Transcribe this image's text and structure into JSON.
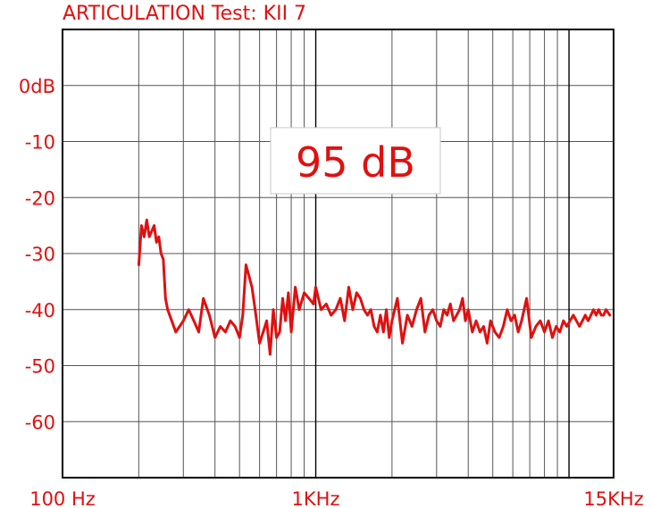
{
  "chart_data": {
    "type": "line",
    "title": "ARTICULATION Test: KII 7",
    "annotation": "95 dB",
    "x_scale": "log",
    "xlim": [
      100,
      15000
    ],
    "ylim": [
      -70,
      10
    ],
    "x_tick_labels": [
      {
        "value": 100,
        "label": "100 Hz"
      },
      {
        "value": 1000,
        "label": "1KHz"
      },
      {
        "value": 15000,
        "label": "15KHz"
      }
    ],
    "y_tick_labels": [
      {
        "value": 0,
        "label": "0dB"
      },
      {
        "value": -10,
        "label": "-10"
      },
      {
        "value": -20,
        "label": "-20"
      },
      {
        "value": -30,
        "label": "-30"
      },
      {
        "value": -40,
        "label": "-40"
      },
      {
        "value": -50,
        "label": "-50"
      },
      {
        "value": -60,
        "label": "-60"
      }
    ],
    "grid": true,
    "series": [
      {
        "color": "#e01010",
        "x": [
          200,
          205,
          210,
          215,
          220,
          225,
          230,
          235,
          240,
          245,
          250,
          255,
          260,
          270,
          280,
          290,
          300,
          315,
          330,
          345,
          360,
          380,
          400,
          420,
          440,
          460,
          480,
          500,
          515,
          530,
          545,
          560,
          580,
          600,
          620,
          640,
          660,
          680,
          700,
          720,
          740,
          760,
          780,
          800,
          830,
          860,
          900,
          940,
          980,
          1000,
          1050,
          1100,
          1150,
          1200,
          1250,
          1300,
          1350,
          1400,
          1450,
          1500,
          1550,
          1600,
          1650,
          1700,
          1750,
          1800,
          1850,
          1900,
          1950,
          2000,
          2100,
          2200,
          2300,
          2400,
          2500,
          2600,
          2700,
          2800,
          2900,
          3000,
          3100,
          3200,
          3300,
          3400,
          3500,
          3600,
          3700,
          3800,
          3900,
          4000,
          4150,
          4300,
          4450,
          4600,
          4750,
          4900,
          5100,
          5300,
          5500,
          5700,
          5900,
          6100,
          6300,
          6500,
          6800,
          7100,
          7400,
          7700,
          8000,
          8300,
          8600,
          8900,
          9200,
          9500,
          9800,
          10100,
          10400,
          10700,
          11000,
          11300,
          11600,
          11900,
          12200,
          12500,
          12800,
          13100,
          13400,
          13700,
          14000,
          14500
        ],
        "y": [
          -32,
          -25,
          -27,
          -24,
          -27,
          -26,
          -25,
          -28,
          -27,
          -30,
          -31,
          -38,
          -40,
          -42,
          -44,
          -43,
          -42,
          -40,
          -42,
          -44,
          -38,
          -41,
          -45,
          -43,
          -44,
          -42,
          -43,
          -45,
          -41,
          -32,
          -34,
          -36,
          -41,
          -46,
          -44,
          -42,
          -48,
          -40,
          -45,
          -44,
          -38,
          -42,
          -37,
          -44,
          -36,
          -40,
          -37,
          -38,
          -39,
          -36,
          -40,
          -39,
          -41,
          -40,
          -38,
          -42,
          -36,
          -40,
          -37,
          -38,
          -40,
          -41,
          -40,
          -43,
          -44,
          -41,
          -44,
          -40,
          -45,
          -42,
          -38,
          -46,
          -41,
          -43,
          -40,
          -38,
          -44,
          -41,
          -40,
          -42,
          -43,
          -40,
          -41,
          -39,
          -42,
          -41,
          -40,
          -38,
          -42,
          -40,
          -44,
          -42,
          -44,
          -43,
          -46,
          -42,
          -44,
          -45,
          -43,
          -40,
          -42,
          -41,
          -44,
          -42,
          -38,
          -45,
          -43,
          -42,
          -44,
          -42,
          -45,
          -43,
          -44,
          -42,
          -43,
          -42,
          -41,
          -42,
          -43,
          -42,
          -41,
          -42,
          -41,
          -40,
          -41,
          -40,
          -41,
          -41,
          -40,
          -41
        ]
      }
    ]
  }
}
